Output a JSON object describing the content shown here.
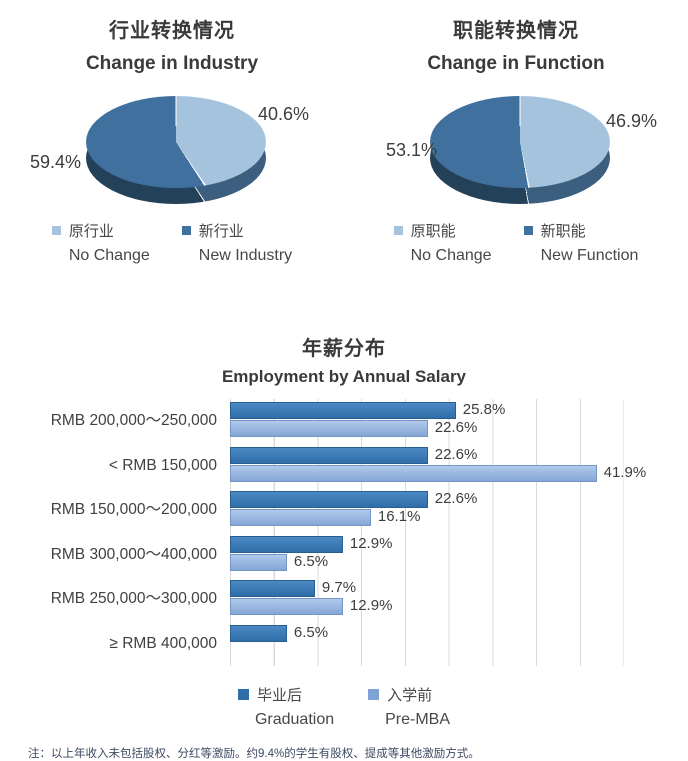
{
  "colors": {
    "text": "#3d3d3d",
    "pie_light": "#a6c3de",
    "pie_dark": "#40719e",
    "pie_side_light": "#3d5f7f",
    "pie_side_dark": "#24415a",
    "bar_dark_fill": "#3878b4",
    "bar_light_fill": "#8fafdc",
    "gridline": "#d9d9d9",
    "footnote_text": "#3d4a63"
  },
  "chart_data": [
    {
      "type": "pie",
      "style": "3d",
      "title_zh": "行业转换情况",
      "title_en": "Change in Industry",
      "start_angle_deg": 0,
      "direction": "clockwise",
      "data_labels": "percent",
      "legend_position": "bottom",
      "slices": [
        {
          "label_zh": "原行业",
          "label_en": "No Change",
          "value": 40.6,
          "color": "#a6c3de"
        },
        {
          "label_zh": "新行业",
          "label_en": "New Industry",
          "value": 59.4,
          "color": "#40719e"
        }
      ]
    },
    {
      "type": "pie",
      "style": "3d",
      "title_zh": "职能转换情况",
      "title_en": "Change in Function",
      "start_angle_deg": 0,
      "direction": "clockwise",
      "data_labels": "percent",
      "legend_position": "bottom",
      "slices": [
        {
          "label_zh": "原职能",
          "label_en": "No Change",
          "value": 46.9,
          "color": "#a6c3de"
        },
        {
          "label_zh": "新职能",
          "label_en": "New Function",
          "value": 53.1,
          "color": "#40719e"
        }
      ]
    },
    {
      "type": "bar",
      "orientation": "horizontal",
      "title_zh": "年薪分布",
      "title_en": "Employment by Annual Salary",
      "categories": [
        "RMB 200,000～250,000",
        "< RMB 150,000",
        "RMB 150,000～200,000",
        "RMB 300,000～400,000",
        "RMB 250,000～300,000",
        "≥ RMB 400,000"
      ],
      "series": [
        {
          "name_zh": "毕业后",
          "name_en": "Graduation",
          "color": "#3878b4",
          "values": [
            25.8,
            22.6,
            22.6,
            12.9,
            9.7,
            6.5
          ]
        },
        {
          "name_zh": "入学前",
          "name_en": "Pre-MBA",
          "color": "#8fafdc",
          "values": [
            22.6,
            41.9,
            16.1,
            6.5,
            12.9,
            null
          ]
        }
      ],
      "xlim": [
        0,
        45
      ],
      "gridline_step_pct": 5,
      "value_labels": true,
      "legend_position": "bottom"
    }
  ],
  "footnote": "注：以上年收入未包括股权、分红等激励。约9.4%的学生有股权、提成等其他激励方式。"
}
